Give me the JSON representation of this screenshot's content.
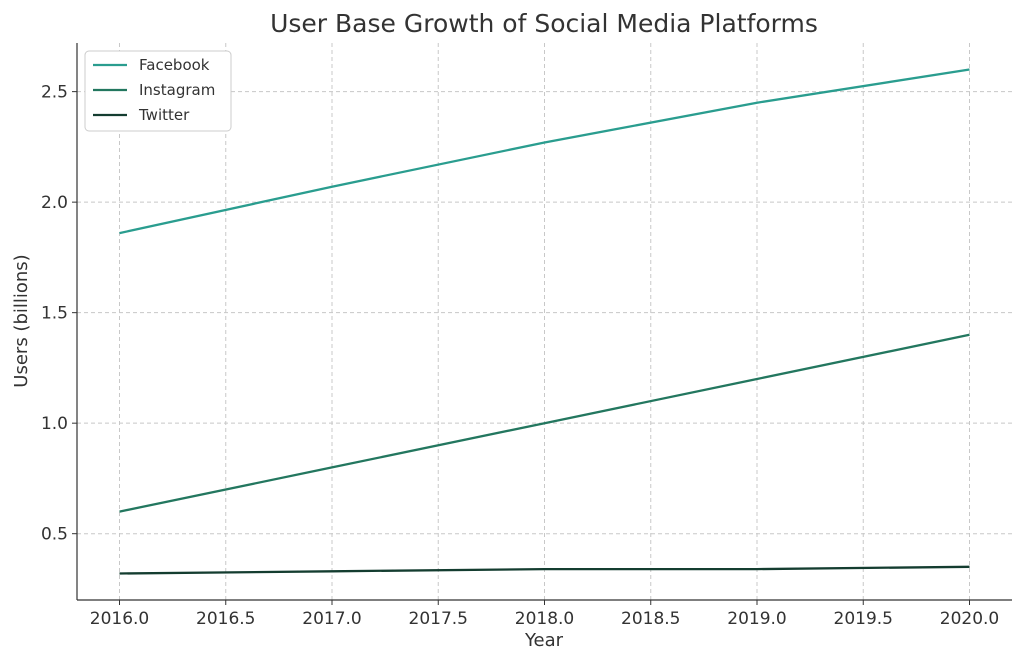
{
  "chart_data": {
    "type": "line",
    "title": "User Base Growth of Social Media Platforms",
    "xlabel": "Year",
    "ylabel": "Users (billions)",
    "x": [
      2016,
      2017,
      2018,
      2019,
      2020
    ],
    "xlim": [
      2015.8,
      2020.2
    ],
    "ylim": [
      0.2,
      2.72
    ],
    "x_ticks": [
      "2016.0",
      "2016.5",
      "2017.0",
      "2017.5",
      "2018.0",
      "2018.5",
      "2019.0",
      "2019.5",
      "2020.0"
    ],
    "y_ticks": [
      "0.5",
      "1.0",
      "1.5",
      "2.0",
      "2.5"
    ],
    "grid": true,
    "legend_position": "top-left",
    "series": [
      {
        "name": "Facebook",
        "color": "#2a9d8f",
        "values": [
          1.86,
          2.07,
          2.27,
          2.45,
          2.6
        ]
      },
      {
        "name": "Instagram",
        "color": "#23775f",
        "values": [
          0.6,
          0.8,
          1.0,
          1.2,
          1.4
        ]
      },
      {
        "name": "Twitter",
        "color": "#143d30",
        "values": [
          0.32,
          0.33,
          0.34,
          0.34,
          0.35
        ]
      }
    ]
  }
}
